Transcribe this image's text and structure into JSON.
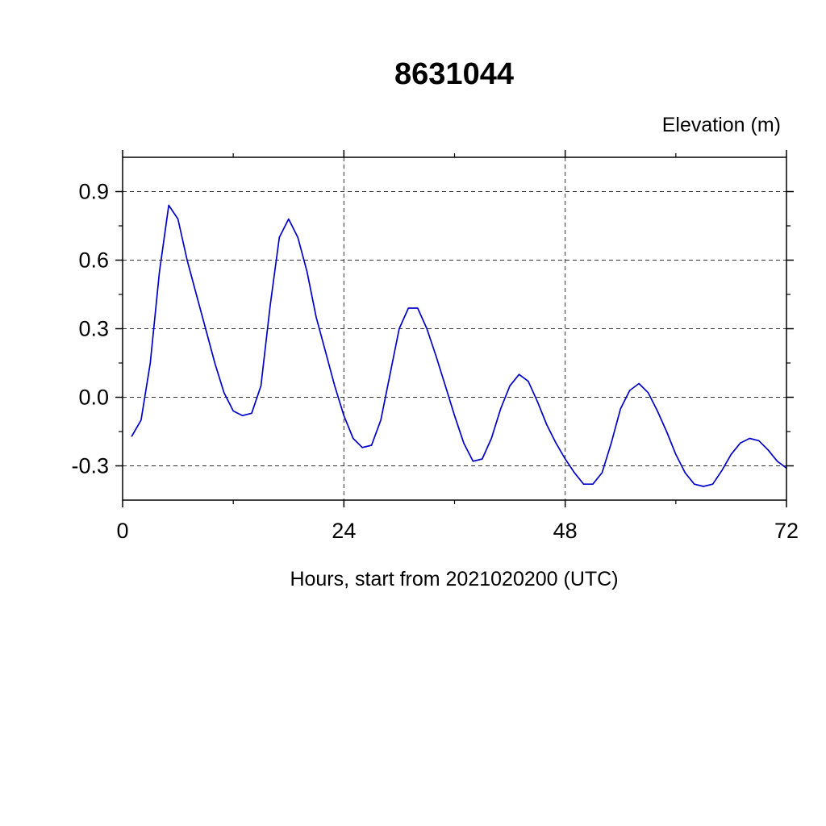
{
  "chart_data": {
    "type": "line",
    "title": "8631044",
    "ylabel": "Elevation (m)",
    "xlabel": "Hours, start from 2021020200 (UTC)",
    "xlim": [
      0,
      72
    ],
    "ylim": [
      -0.45,
      1.05
    ],
    "xticks": [
      0,
      24,
      48,
      72
    ],
    "xminor_step": 12,
    "yticks": [
      -0.3,
      0.0,
      0.3,
      0.6,
      0.9
    ],
    "yminor_step": 0.15,
    "grid": "dashed",
    "vgrid_x": [
      24,
      48
    ],
    "legend": "none",
    "series": [
      {
        "name": "elevation",
        "color": "#0000c8",
        "x": [
          1,
          2,
          3,
          4,
          5,
          6,
          7,
          8,
          9,
          10,
          11,
          12,
          13,
          14,
          15,
          16,
          17,
          18,
          19,
          20,
          21,
          22,
          23,
          24,
          25,
          26,
          27,
          28,
          29,
          30,
          31,
          32,
          33,
          34,
          35,
          36,
          37,
          38,
          39,
          40,
          41,
          42,
          43,
          44,
          45,
          46,
          47,
          48,
          49,
          50,
          51,
          52,
          53,
          54,
          55,
          56,
          57,
          58,
          59,
          60,
          61,
          62,
          63,
          64,
          65,
          66,
          67,
          68,
          69,
          70,
          71,
          72
        ],
        "y": [
          -0.17,
          -0.1,
          0.15,
          0.55,
          0.84,
          0.78,
          0.6,
          0.45,
          0.3,
          0.15,
          0.02,
          -0.06,
          -0.08,
          -0.07,
          0.05,
          0.4,
          0.7,
          0.78,
          0.7,
          0.55,
          0.35,
          0.2,
          0.05,
          -0.08,
          -0.18,
          -0.22,
          -0.21,
          -0.1,
          0.1,
          0.3,
          0.39,
          0.39,
          0.3,
          0.18,
          0.05,
          -0.08,
          -0.2,
          -0.28,
          -0.27,
          -0.18,
          -0.05,
          0.05,
          0.1,
          0.07,
          -0.02,
          -0.12,
          -0.2,
          -0.27,
          -0.33,
          -0.38,
          -0.38,
          -0.33,
          -0.2,
          -0.05,
          0.03,
          0.06,
          0.02,
          -0.06,
          -0.15,
          -0.25,
          -0.33,
          -0.38,
          -0.39,
          -0.38,
          -0.32,
          -0.25,
          -0.2,
          -0.18,
          -0.19,
          -0.23,
          -0.28,
          -0.31
        ]
      }
    ]
  },
  "style": {
    "line_color": "#0000c8",
    "axis_color": "#000000",
    "grid_color": "#333333",
    "background": "#ffffff"
  }
}
